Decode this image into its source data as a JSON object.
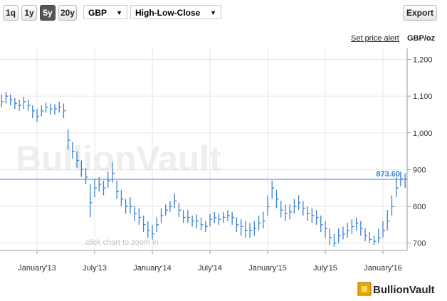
{
  "ui": {
    "ranges": [
      "1q",
      "1y",
      "5y",
      "20y"
    ],
    "active_range": 2,
    "currency": "GBP",
    "chart_style": "High-Low-Close",
    "export": "Export",
    "alert_link": "Set price alert",
    "unit": "GBP/oz",
    "watermark": "BullionVault",
    "hint": "click chart to zoom in",
    "logo": "BullionVault"
  },
  "chart_data": {
    "type": "hlc",
    "color": "#3b7fd6",
    "grid": true,
    "categories": [
      null,
      null,
      null,
      null,
      null,
      null,
      null,
      null,
      "January'13",
      null,
      null,
      null,
      null,
      null,
      null,
      null,
      null,
      null,
      null,
      null,
      null,
      "July'13",
      null,
      null,
      null,
      null,
      null,
      null,
      null,
      null,
      null,
      null,
      null,
      null,
      "January'14",
      null,
      null,
      null,
      null,
      null,
      null,
      null,
      null,
      null,
      null,
      null,
      null,
      "July'14",
      null,
      null,
      null,
      null,
      null,
      null,
      null,
      null,
      null,
      null,
      null,
      null,
      "January'15",
      null,
      null,
      null,
      null,
      null,
      null,
      null,
      null,
      null,
      null,
      null,
      null,
      "July'15",
      null,
      null,
      null,
      null,
      null,
      null,
      null,
      null,
      null,
      null,
      null,
      null,
      "January'16",
      null,
      null,
      null,
      null,
      null
    ],
    "high": [
      1105,
      1112,
      1105,
      1095,
      1090,
      1098,
      1090,
      1075,
      1065,
      1075,
      1082,
      1080,
      1078,
      1085,
      1080,
      1010,
      975,
      950,
      925,
      905,
      860,
      875,
      880,
      870,
      895,
      920,
      870,
      845,
      820,
      825,
      800,
      795,
      775,
      760,
      750,
      770,
      795,
      805,
      815,
      835,
      810,
      790,
      790,
      775,
      778,
      770,
      760,
      780,
      785,
      780,
      785,
      790,
      785,
      770,
      765,
      760,
      755,
      760,
      775,
      785,
      830,
      870,
      845,
      815,
      805,
      805,
      820,
      830,
      815,
      800,
      795,
      790,
      775,
      760,
      740,
      725,
      740,
      745,
      755,
      765,
      770,
      760,
      740,
      730,
      720,
      740,
      760,
      790,
      830,
      880,
      895,
      890
    ],
    "low": [
      1070,
      1080,
      1075,
      1065,
      1060,
      1065,
      1060,
      1040,
      1030,
      1045,
      1055,
      1050,
      1050,
      1055,
      1040,
      955,
      930,
      905,
      880,
      860,
      770,
      825,
      840,
      830,
      850,
      865,
      820,
      800,
      780,
      780,
      760,
      750,
      730,
      715,
      710,
      730,
      755,
      775,
      785,
      795,
      770,
      755,
      755,
      745,
      740,
      735,
      730,
      745,
      755,
      750,
      755,
      760,
      750,
      730,
      720,
      715,
      715,
      720,
      735,
      740,
      775,
      820,
      795,
      770,
      760,
      765,
      780,
      790,
      775,
      760,
      755,
      750,
      730,
      715,
      695,
      690,
      700,
      710,
      715,
      725,
      735,
      720,
      705,
      700,
      695,
      700,
      715,
      735,
      775,
      825,
      855,
      850
    ],
    "close": [
      1085,
      1100,
      1090,
      1080,
      1075,
      1085,
      1075,
      1060,
      1045,
      1060,
      1070,
      1065,
      1065,
      1070,
      1060,
      980,
      950,
      925,
      900,
      880,
      810,
      850,
      860,
      850,
      870,
      890,
      840,
      820,
      800,
      800,
      780,
      770,
      750,
      735,
      725,
      750,
      775,
      790,
      800,
      815,
      790,
      770,
      770,
      760,
      760,
      750,
      745,
      765,
      770,
      765,
      770,
      775,
      770,
      750,
      745,
      735,
      735,
      740,
      755,
      760,
      800,
      850,
      820,
      790,
      780,
      785,
      800,
      810,
      795,
      780,
      775,
      770,
      750,
      740,
      715,
      700,
      720,
      725,
      735,
      745,
      755,
      740,
      720,
      710,
      705,
      715,
      735,
      760,
      800,
      850,
      875,
      873.6
    ],
    "current_price": {
      "value": 873.6,
      "label": "873.60"
    },
    "current_color": "#3b7fd6",
    "ylim": [
      680,
      1230
    ],
    "yticks": [
      700,
      800,
      900,
      {
        "value": 1000,
        "label": "1,000"
      },
      {
        "value": 1100,
        "label": "1,100"
      },
      {
        "value": 1200,
        "label": "1,200"
      }
    ]
  }
}
